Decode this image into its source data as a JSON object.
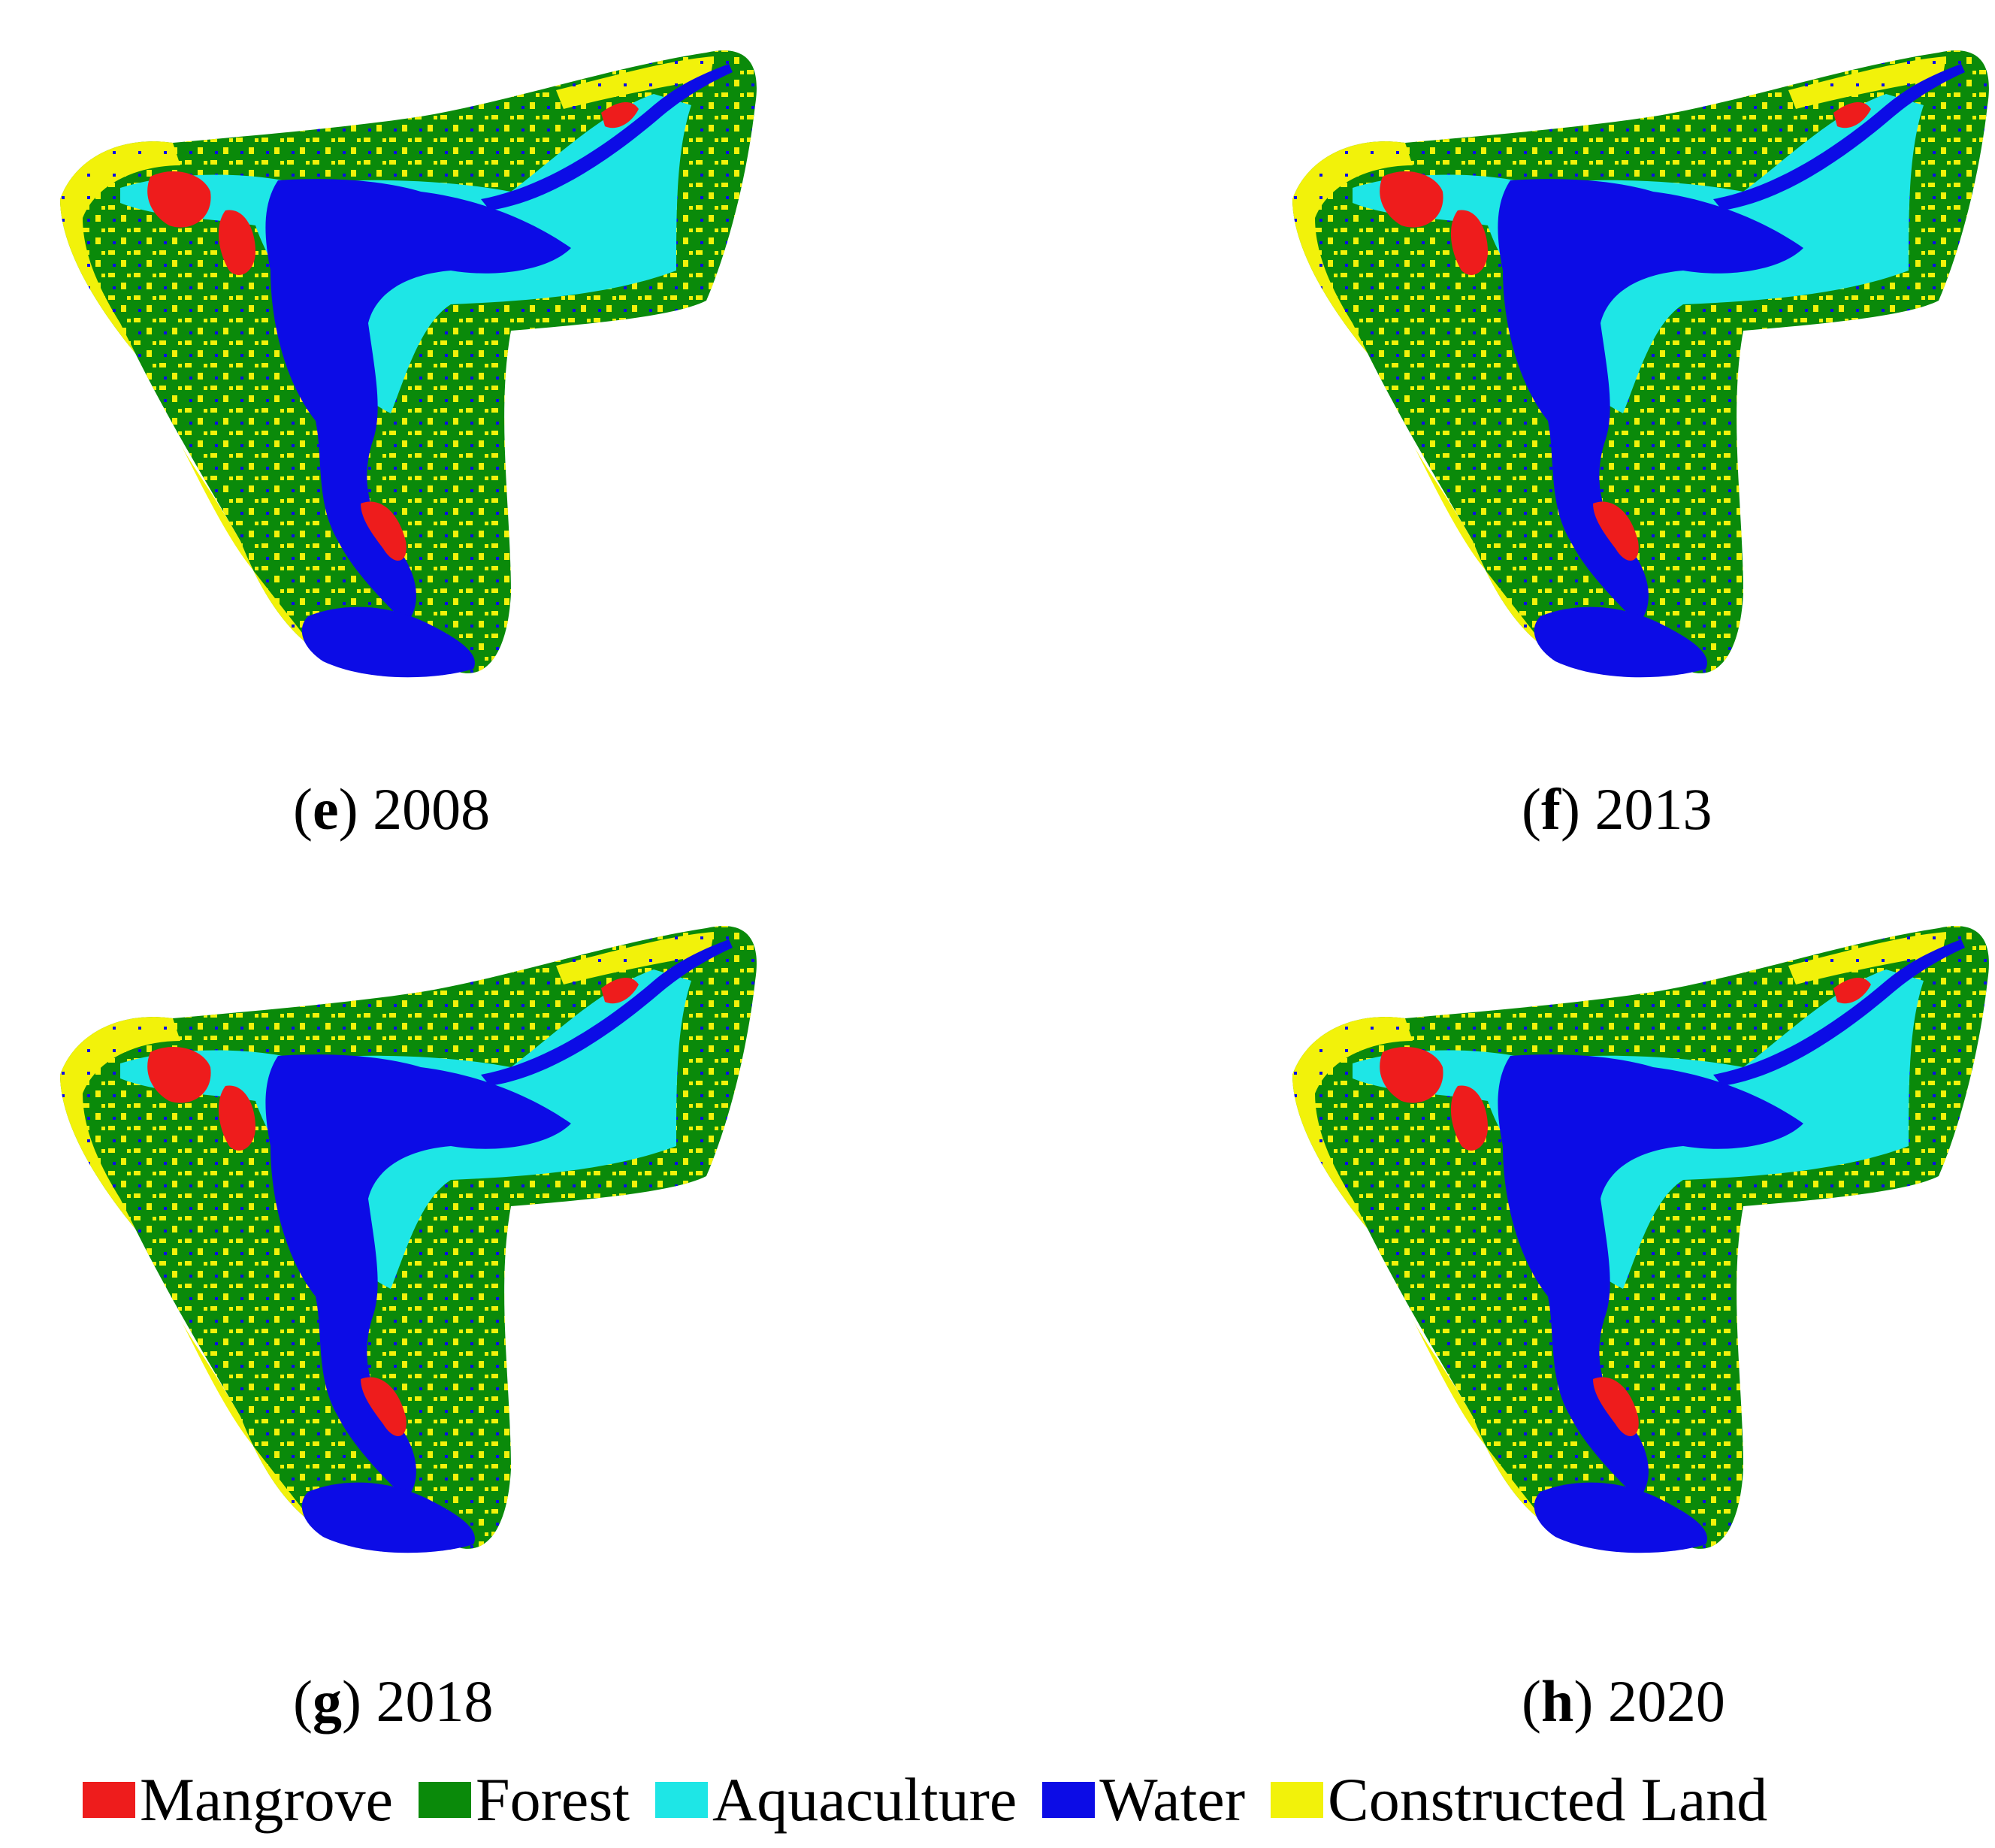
{
  "panels": [
    {
      "id": "e",
      "letter": "e",
      "year": "2008"
    },
    {
      "id": "f",
      "letter": "f",
      "year": "2013"
    },
    {
      "id": "g",
      "letter": "g",
      "year": "2018"
    },
    {
      "id": "h",
      "letter": "h",
      "year": "2020"
    }
  ],
  "legend": [
    {
      "label": "Mangrove",
      "color": "#ee1c1c"
    },
    {
      "label": "Forest",
      "color": "#0a8a0a"
    },
    {
      "label": "Aquaculture",
      "color": "#1ee6e6"
    },
    {
      "label": "Water",
      "color": "#0c0ce6"
    },
    {
      "label": "Constructed Land",
      "color": "#f2f20a"
    }
  ]
}
